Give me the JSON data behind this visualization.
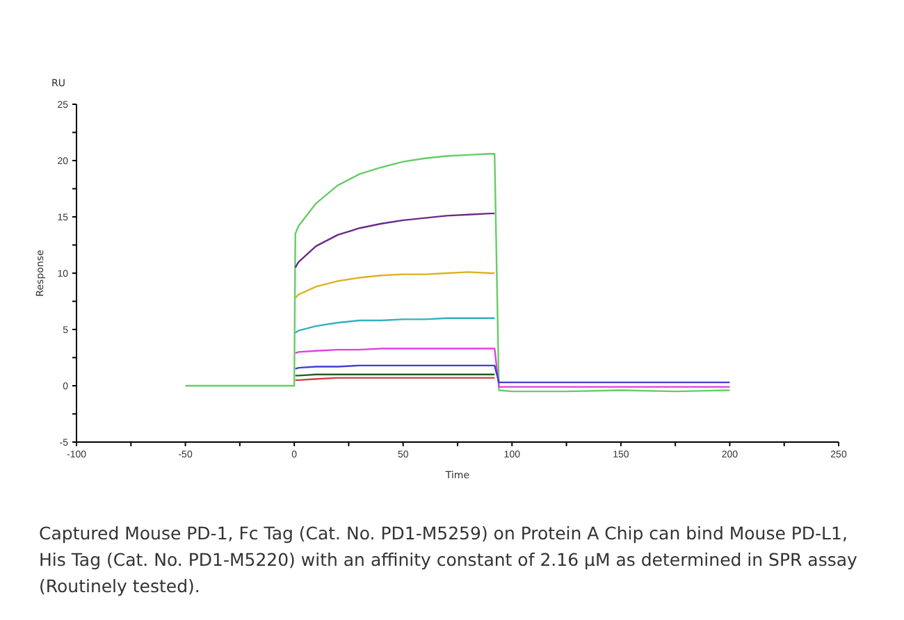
{
  "chart_data": {
    "type": "line",
    "xlabel": "Time",
    "ylabel": "Response",
    "annotations": [
      "RU",
      "Captured Mouse PD-1, Fc Tag (Cat. No. PD1-M5259) on Protein A Chip can bind Mouse PD-L1, His Tag (Cat. No. PD1-M5220) with an affinity constant of 2.16 μM as determined in SPR assay (Routinely tested)."
    ],
    "x": [
      -50,
      -25,
      0,
      0.5,
      2,
      10,
      20,
      30,
      40,
      50,
      60,
      70,
      80,
      90,
      92,
      94,
      100,
      125,
      150,
      175,
      200
    ],
    "series": [
      {
        "color": "#66cc66",
        "values": [
          0,
          0,
          0,
          13.5,
          14.2,
          16.2,
          17.8,
          18.8,
          19.4,
          19.9,
          20.2,
          20.4,
          20.5,
          20.6,
          20.6,
          -0.4,
          -0.5,
          -0.5,
          -0.4,
          -0.5,
          -0.4
        ]
      },
      {
        "color": "#6a2a8a",
        "values": [
          null,
          null,
          null,
          10.5,
          11.0,
          12.4,
          13.4,
          14.0,
          14.4,
          14.7,
          14.9,
          15.1,
          15.2,
          15.3,
          15.3,
          null,
          null,
          null,
          null,
          null,
          null
        ]
      },
      {
        "color": "#e0b020",
        "values": [
          null,
          null,
          null,
          7.8,
          8.1,
          8.8,
          9.3,
          9.6,
          9.8,
          9.9,
          9.9,
          10.0,
          10.1,
          10.0,
          10.0,
          null,
          null,
          null,
          null,
          null,
          null
        ]
      },
      {
        "color": "#30b0c0",
        "values": [
          null,
          null,
          null,
          4.7,
          4.9,
          5.3,
          5.6,
          5.8,
          5.8,
          5.9,
          5.9,
          6.0,
          6.0,
          6.0,
          6.0,
          null,
          null,
          null,
          null,
          null,
          null
        ]
      },
      {
        "color": "#e040e0",
        "values": [
          null,
          null,
          null,
          2.9,
          3.0,
          3.1,
          3.2,
          3.2,
          3.3,
          3.3,
          3.3,
          3.3,
          3.3,
          3.3,
          3.3,
          -0.1,
          -0.1,
          -0.1,
          -0.1,
          -0.1,
          -0.1
        ]
      },
      {
        "color": "#4040d0",
        "values": [
          null,
          null,
          null,
          1.5,
          1.6,
          1.7,
          1.7,
          1.8,
          1.8,
          1.8,
          1.8,
          1.8,
          1.8,
          1.8,
          1.8,
          0.3,
          0.3,
          0.3,
          0.3,
          0.3,
          0.3
        ]
      },
      {
        "color": "#206020",
        "values": [
          null,
          null,
          null,
          0.9,
          0.9,
          1.0,
          1.0,
          1.0,
          1.0,
          1.0,
          1.0,
          1.0,
          1.0,
          1.0,
          1.0,
          null,
          null,
          null,
          null,
          null,
          null
        ]
      },
      {
        "color": "#d04040",
        "values": [
          null,
          null,
          null,
          0.5,
          0.5,
          0.6,
          0.7,
          0.7,
          0.7,
          0.7,
          0.7,
          0.7,
          0.7,
          0.7,
          0.7,
          null,
          null,
          null,
          null,
          null,
          null
        ]
      }
    ],
    "xlim": [
      -100,
      250
    ],
    "xticks": [
      -100,
      {
        "value": -75,
        "label": null
      },
      -50,
      {
        "value": -25,
        "label": null
      },
      0,
      {
        "value": 25,
        "label": null
      },
      50,
      {
        "value": 75,
        "label": null
      },
      100,
      {
        "value": 125,
        "label": null
      },
      150,
      {
        "value": 175,
        "label": null
      },
      200,
      {
        "value": 225,
        "label": null
      },
      250
    ],
    "ylim": [
      -5,
      25
    ],
    "yticks": [
      -5,
      {
        "value": -2.5,
        "label": null
      },
      0,
      {
        "value": 2.5,
        "label": null
      },
      5,
      {
        "value": 7.5,
        "label": null
      },
      10,
      {
        "value": 12.5,
        "label": null
      },
      15,
      {
        "value": 17.5,
        "label": null
      },
      20,
      {
        "value": 22.5,
        "label": null
      },
      25
    ],
    "grid": false,
    "marker": "none",
    "line_style": "solid"
  }
}
